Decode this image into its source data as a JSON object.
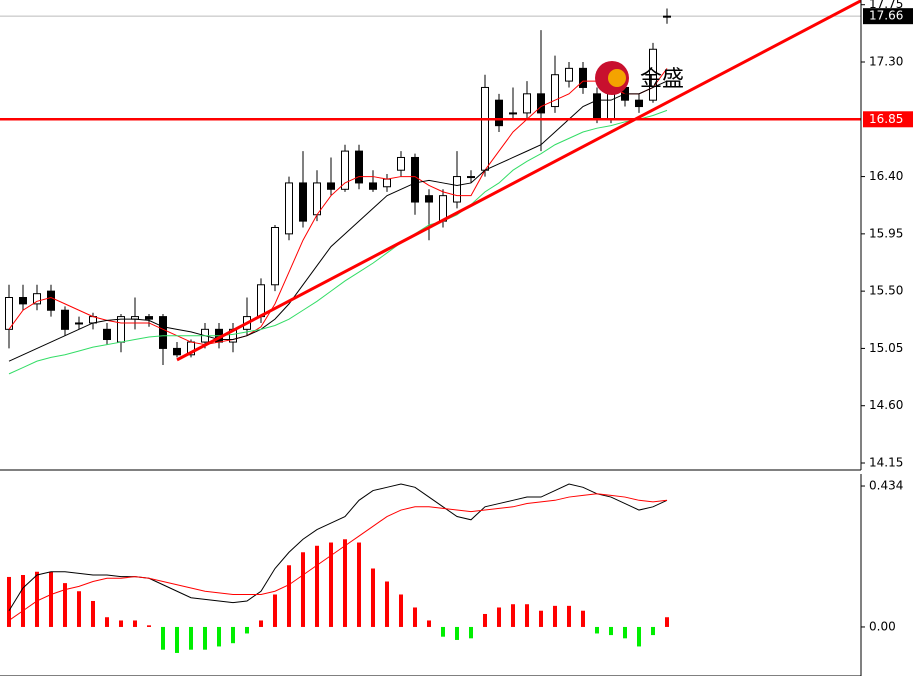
{
  "chart_data": [
    {
      "type": "candlestick",
      "logo": "金盛",
      "open": [
        15.2,
        15.45,
        15.4,
        15.5,
        15.35,
        15.25,
        15.25,
        15.2,
        15.1,
        15.28,
        15.3,
        15.3,
        15.05,
        15.0,
        15.1,
        15.2,
        15.1,
        15.2,
        15.3,
        15.55,
        15.95,
        16.35,
        16.1,
        16.35,
        16.3,
        16.6,
        16.35,
        16.32,
        16.45,
        16.55,
        16.25,
        16.05,
        16.2,
        16.4,
        16.45,
        17.0,
        16.9,
        16.9,
        17.05,
        16.95,
        17.15,
        17.25,
        17.05,
        16.85,
        17.1,
        17.0,
        17.0,
        17.66
      ],
      "high": [
        15.55,
        15.55,
        15.55,
        15.55,
        15.38,
        15.3,
        15.33,
        15.25,
        15.32,
        15.45,
        15.32,
        15.32,
        15.1,
        15.12,
        15.25,
        15.25,
        15.25,
        15.45,
        15.6,
        16.02,
        16.4,
        16.6,
        16.45,
        16.55,
        16.65,
        16.65,
        16.45,
        16.42,
        16.6,
        16.58,
        16.3,
        16.3,
        16.6,
        16.45,
        17.2,
        17.05,
        17.1,
        17.15,
        17.55,
        17.35,
        17.3,
        17.3,
        17.1,
        17.2,
        17.15,
        17.05,
        17.45,
        17.72
      ],
      "low": [
        15.05,
        15.35,
        15.35,
        15.3,
        15.15,
        15.2,
        15.2,
        15.08,
        15.02,
        15.2,
        15.22,
        14.92,
        14.98,
        14.98,
        15.05,
        15.05,
        15.02,
        15.15,
        15.25,
        15.5,
        15.9,
        16.0,
        16.05,
        16.25,
        16.28,
        16.3,
        16.28,
        16.28,
        16.4,
        16.1,
        15.9,
        16.0,
        16.15,
        16.35,
        16.4,
        16.75,
        16.85,
        16.85,
        16.6,
        16.9,
        17.1,
        17.05,
        16.82,
        16.82,
        16.95,
        16.9,
        16.98,
        17.6
      ],
      "close": [
        15.45,
        15.4,
        15.48,
        15.35,
        15.2,
        15.25,
        15.3,
        15.12,
        15.3,
        15.3,
        15.28,
        15.05,
        15.0,
        15.1,
        15.2,
        15.1,
        15.2,
        15.3,
        15.55,
        16.0,
        16.35,
        16.05,
        16.35,
        16.3,
        16.6,
        16.35,
        16.3,
        16.38,
        16.55,
        16.2,
        16.2,
        16.25,
        16.4,
        16.4,
        17.1,
        16.8,
        16.9,
        17.05,
        16.9,
        17.2,
        17.25,
        17.1,
        16.85,
        17.1,
        17.0,
        16.95,
        17.4,
        17.66
      ],
      "series": [
        {
          "color": "#ff0000",
          "values": [
            15.2,
            15.35,
            15.42,
            15.45,
            15.4,
            15.35,
            15.3,
            15.27,
            15.25,
            15.25,
            15.25,
            15.2,
            15.15,
            15.1,
            15.08,
            15.1,
            15.12,
            15.15,
            15.22,
            15.4,
            15.65,
            15.9,
            16.1,
            16.25,
            16.35,
            16.4,
            16.4,
            16.38,
            16.4,
            16.4,
            16.33,
            16.28,
            16.25,
            16.25,
            16.45,
            16.6,
            16.75,
            16.85,
            16.95,
            17.0,
            17.05,
            17.15,
            17.15,
            17.1,
            17.05,
            17.05,
            17.1,
            17.25
          ]
        },
        {
          "color": "#000000",
          "values": [
            14.95,
            15.0,
            15.05,
            15.1,
            15.15,
            15.2,
            15.25,
            15.27,
            15.28,
            15.28,
            15.27,
            15.22,
            15.2,
            15.18,
            15.15,
            15.12,
            15.12,
            15.15,
            15.2,
            15.28,
            15.4,
            15.55,
            15.7,
            15.85,
            15.95,
            16.05,
            16.15,
            16.25,
            16.3,
            16.35,
            16.37,
            16.35,
            16.33,
            16.35,
            16.45,
            16.5,
            16.55,
            16.6,
            16.65,
            16.75,
            16.85,
            16.95,
            17.0,
            17.0,
            17.05,
            17.05,
            17.1,
            17.15
          ]
        },
        {
          "color": "#33dd66",
          "values": [
            14.85,
            14.9,
            14.95,
            14.98,
            15.0,
            15.03,
            15.06,
            15.08,
            15.1,
            15.12,
            15.14,
            15.15,
            15.15,
            15.15,
            15.15,
            15.15,
            15.16,
            15.18,
            15.2,
            15.23,
            15.28,
            15.35,
            15.42,
            15.5,
            15.58,
            15.65,
            15.72,
            15.8,
            15.88,
            15.95,
            16.02,
            16.05,
            16.1,
            16.18,
            16.28,
            16.35,
            16.45,
            16.52,
            16.58,
            16.65,
            16.7,
            16.75,
            16.78,
            16.8,
            16.83,
            16.85,
            16.88,
            16.92
          ]
        }
      ],
      "trend_line": {
        "x": [
          12,
          61
        ],
        "values": [
          14.96,
          17.79
        ],
        "color": "#ff0000"
      },
      "level_line": {
        "value": 16.85,
        "color": "#ff0000"
      },
      "last_price": 17.66,
      "ylim": [
        14.095,
        17.787
      ],
      "yticks": [
        17.75,
        {
          "value": 17.3,
          "label": "17.30"
        },
        {
          "value": 16.4,
          "label": "16.40"
        },
        15.95,
        {
          "value": 15.5,
          "label": "15.50"
        },
        15.05,
        {
          "value": 14.6,
          "label": "14.60"
        },
        14.15
      ]
    },
    {
      "type": "macd",
      "values": [
        0.154,
        0.16,
        0.17,
        0.17,
        0.135,
        0.11,
        0.08,
        0.03,
        0.02,
        0.02,
        0.005,
        -0.07,
        -0.08,
        -0.07,
        -0.07,
        -0.06,
        -0.05,
        -0.02,
        0.02,
        0.1,
        0.19,
        0.23,
        0.25,
        0.26,
        0.27,
        0.26,
        0.18,
        0.14,
        0.1,
        0.06,
        0.02,
        -0.03,
        -0.04,
        -0.035,
        0.04,
        0.06,
        0.07,
        0.07,
        0.05,
        0.065,
        0.065,
        0.05,
        -0.02,
        -0.025,
        -0.035,
        -0.06,
        -0.025,
        0.03
      ],
      "colors": {
        "up": "#ff0000",
        "down": "#00ee00"
      },
      "series": [
        {
          "color": "#000000",
          "values": [
            0.05,
            0.12,
            0.16,
            0.17,
            0.17,
            0.165,
            0.16,
            0.16,
            0.155,
            0.155,
            0.15,
            0.13,
            0.11,
            0.09,
            0.085,
            0.08,
            0.075,
            0.08,
            0.11,
            0.18,
            0.23,
            0.27,
            0.3,
            0.32,
            0.34,
            0.39,
            0.42,
            0.43,
            0.44,
            0.43,
            0.4,
            0.37,
            0.34,
            0.33,
            0.37,
            0.38,
            0.39,
            0.4,
            0.4,
            0.42,
            0.44,
            0.43,
            0.41,
            0.4,
            0.38,
            0.36,
            0.37,
            0.39
          ]
        },
        {
          "color": "#ff0000",
          "values": [
            0.02,
            0.05,
            0.08,
            0.1,
            0.115,
            0.125,
            0.14,
            0.15,
            0.15,
            0.155,
            0.15,
            0.14,
            0.13,
            0.12,
            0.11,
            0.105,
            0.1,
            0.1,
            0.1,
            0.11,
            0.13,
            0.16,
            0.19,
            0.22,
            0.25,
            0.28,
            0.31,
            0.34,
            0.36,
            0.37,
            0.37,
            0.365,
            0.36,
            0.355,
            0.36,
            0.365,
            0.37,
            0.38,
            0.385,
            0.39,
            0.4,
            0.405,
            0.41,
            0.405,
            0.4,
            0.39,
            0.385,
            0.39
          ]
        }
      ],
      "ylim": [
        -0.151,
        0.471
      ],
      "yticks": [
        0.434,
        {
          "value": 0,
          "label": "0.00"
        }
      ]
    }
  ]
}
